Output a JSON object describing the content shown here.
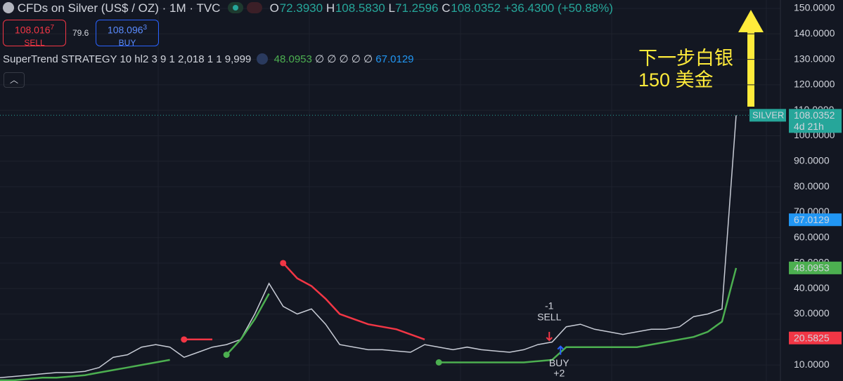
{
  "header": {
    "symbol": "CFDs on Silver (US$ / OZ) · 1M · TVC",
    "ohlc": [
      {
        "key": "O",
        "value": "72.3930"
      },
      {
        "key": "H",
        "value": "108.5830"
      },
      {
        "key": "L",
        "value": "71.2596"
      },
      {
        "key": "C",
        "value": "108.0352"
      }
    ],
    "change": "+36.4300 (+50.88%)"
  },
  "order": {
    "sell_price": "108.016",
    "sell_digit": "7",
    "sell_label": "SELL",
    "spread": "79.6",
    "buy_price": "108.096",
    "buy_digit": "3",
    "buy_label": "BUY"
  },
  "indicator": {
    "name": "SuperTrend STRATEGY 10 hl2 3 9 1 2,018 1 1 9,999",
    "value_up": "48.0953",
    "empties": [
      "∅",
      "∅",
      "∅",
      "∅",
      "∅"
    ],
    "value_down": "67.0129"
  },
  "annotation": [
    "下一步白银",
    "150 美金"
  ],
  "trades": {
    "sell_qty": "-1",
    "sell_label": "SELL",
    "buy_label": "BUY",
    "buy_qty": "+2"
  },
  "chart_data": {
    "type": "line",
    "categories": [
      null,
      null,
      null,
      null,
      null,
      null,
      null,
      null,
      null,
      null,
      null,
      null,
      null,
      null,
      null,
      null,
      null,
      null,
      null,
      null,
      null,
      null,
      null,
      null,
      null,
      null,
      null,
      null,
      null,
      null,
      null,
      null,
      null,
      null,
      null,
      null,
      null,
      null,
      null,
      null,
      null,
      null,
      null,
      null,
      null,
      null,
      null,
      null,
      null,
      null,
      null,
      null,
      null
    ],
    "ylim": [
      3.7,
      153.3
    ],
    "yticks": [
      {
        "value": 10,
        "label": "10.0000"
      },
      {
        "value": 20,
        "label": "20.0000"
      },
      {
        "value": 30,
        "label": "30.0000"
      },
      {
        "value": 40,
        "label": "40.0000"
      },
      {
        "value": 50,
        "label": "50.0000"
      },
      {
        "value": 60,
        "label": "60.0000"
      },
      {
        "value": 70,
        "label": "70.0000"
      },
      {
        "value": 80,
        "label": "80.0000"
      },
      {
        "value": 90,
        "label": "90.0000"
      },
      {
        "value": 100,
        "label": "100.0000"
      },
      {
        "value": 110,
        "label": "110.0000"
      },
      {
        "value": 120,
        "label": "120.0000"
      },
      {
        "value": 130,
        "label": "130.0000"
      },
      {
        "value": 140,
        "label": "140.0000"
      },
      {
        "value": 150,
        "label": "150.0000"
      }
    ],
    "grid": true,
    "series": [
      {
        "name": "SILVER",
        "color": "#c8ccd6",
        "values": [
          5,
          5.5,
          6,
          6.5,
          7,
          7,
          7.5,
          9,
          13,
          14,
          17,
          18,
          17,
          13,
          15,
          17,
          18,
          20,
          30,
          42,
          33,
          30,
          32,
          26,
          18,
          17,
          16,
          16,
          15.5,
          15,
          18,
          17,
          16,
          17,
          16,
          15.5,
          15,
          16,
          18,
          19,
          25,
          26,
          24,
          23,
          22,
          23,
          24,
          24,
          25,
          29,
          30,
          32,
          108.0352
        ]
      },
      {
        "name": "SuperTrend Up",
        "color": "#4caf50",
        "values": [
          4,
          4,
          4.5,
          5,
          5,
          5.5,
          6,
          7,
          8,
          9,
          10,
          11,
          12,
          null,
          null,
          null,
          14,
          20,
          28,
          38,
          null,
          null,
          null,
          null,
          null,
          null,
          null,
          null,
          null,
          null,
          null,
          11,
          11,
          11,
          11,
          11,
          11,
          11,
          11.5,
          12,
          17,
          17,
          17,
          17,
          17,
          17,
          18,
          19,
          20,
          21,
          23,
          27,
          48.0953
        ]
      },
      {
        "name": "SuperTrend Down",
        "color": "#f23645",
        "values": [
          null,
          null,
          null,
          null,
          null,
          null,
          null,
          null,
          null,
          null,
          null,
          null,
          null,
          20,
          20,
          20,
          null,
          null,
          null,
          null,
          50,
          44,
          41,
          36,
          30,
          28,
          26,
          25,
          24,
          22,
          20,
          null,
          null,
          null,
          null,
          null,
          null,
          null,
          null,
          null,
          null,
          null,
          null,
          null,
          null,
          null,
          null,
          null,
          null,
          null,
          null,
          null,
          null
        ]
      }
    ],
    "last_price": {
      "symbol": "SILVER",
      "value": 108.0352,
      "countdown": "4d 21h"
    },
    "badges": [
      {
        "value": 67.0129,
        "color": "#2196f3"
      },
      {
        "value": 48.0953,
        "color": "#4caf50"
      },
      {
        "value": 20.5825,
        "color": "#f23645"
      }
    ]
  }
}
